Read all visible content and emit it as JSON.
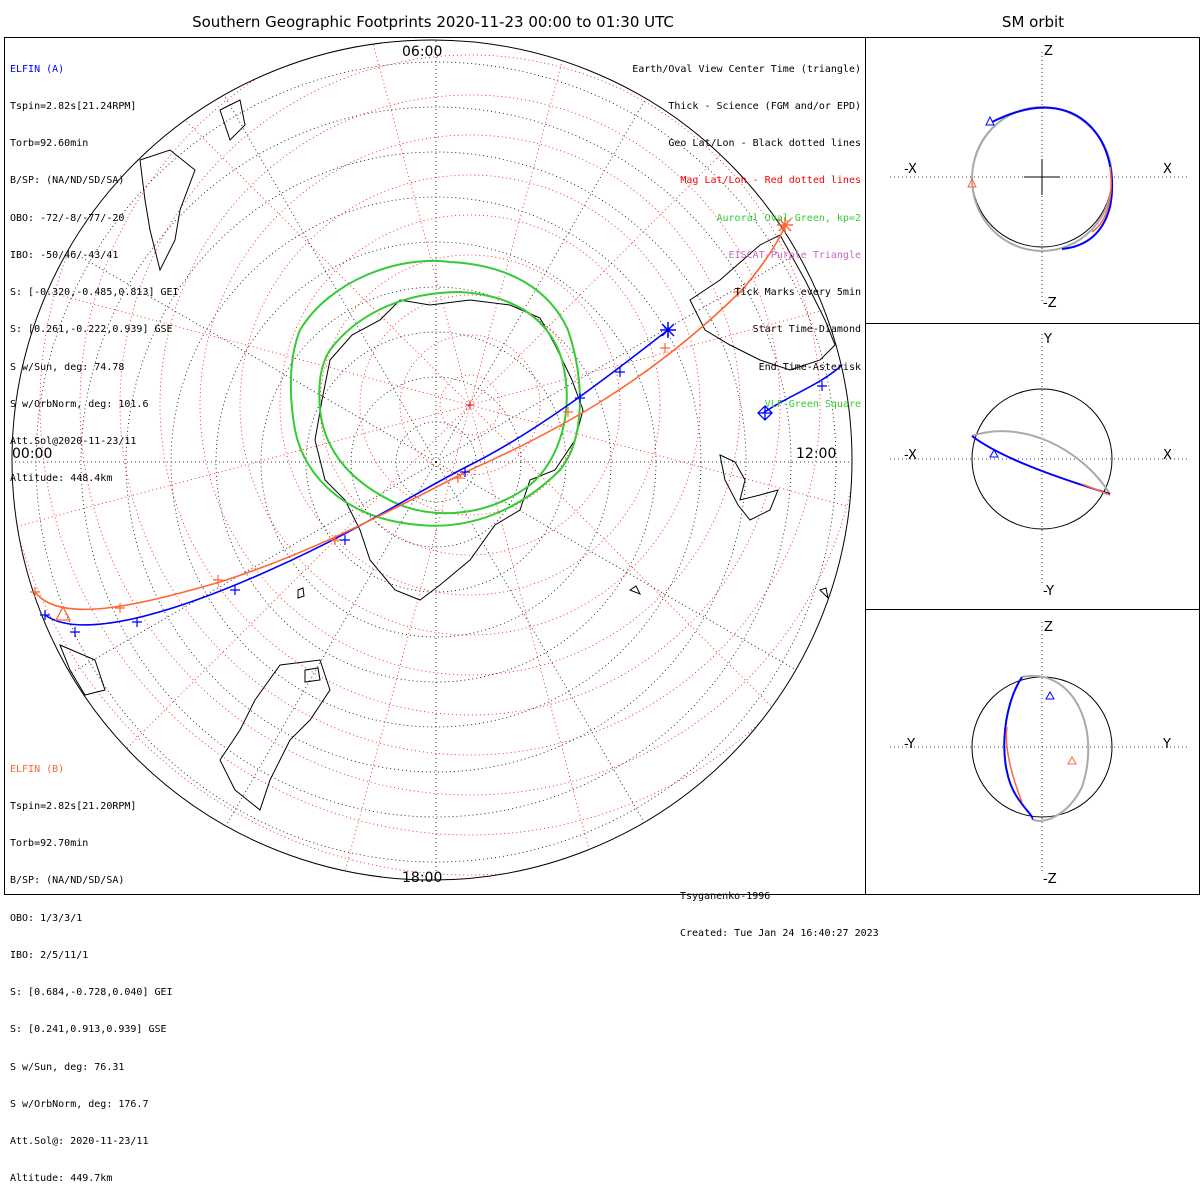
{
  "title": "Southern Geographic Footprints 2020-11-23 00:00 to 01:30 UTC",
  "sm_title": "SM orbit",
  "hour_labels": {
    "top": "06:00",
    "left": "00:00",
    "right": "12:00",
    "bottom": "18:00"
  },
  "elfin_a": {
    "name": "ELFIN (A)",
    "color": "#0000ff",
    "lines": [
      "Tspin=2.82s[21.24RPM]",
      "Torb=92.60min",
      "B/SP: (NA/ND/SD/SA)",
      "OBO: -72/-8/-77/-20",
      "IBO: -50/46/-43/41",
      "S: [-0.320,-0.485,0.813] GEI",
      "S: [0.261,-0.222,0.939] GSE",
      "S w/Sun, deg: 74.78",
      "S w/OrbNorm, deg: 101.6",
      "Att.Sol@2020-11-23/11",
      "Altitude: 448.4km"
    ]
  },
  "elfin_b": {
    "name": "ELFIN (B)",
    "color": "#ff6633",
    "lines": [
      "Tspin=2.82s[21.20RPM]",
      "Torb=92.70min",
      "B/SP: (NA/ND/SD/SA)",
      "OBO: 1/3/3/1",
      "IBO: 2/5/11/1",
      "S: [0.684,-0.728,0.040] GEI",
      "S: [0.241,0.913,0.939] GSE",
      "S w/Sun, deg: 76.31",
      "S w/OrbNorm, deg: 176.7",
      "Att.Sol@: 2020-11-23/11",
      "Altitude: 449.7km"
    ]
  },
  "legend": [
    {
      "text": "Earth/Oval View Center Time (triangle)",
      "color": "#000000"
    },
    {
      "text": "Thick - Science (FGM and/or EPD)",
      "color": "#000000"
    },
    {
      "text": "Geo Lat/Lon - Black dotted lines",
      "color": "#000000"
    },
    {
      "text": "Mag Lat/Lon - Red dotted lines",
      "color": "#ff0000"
    },
    {
      "text": "Auroral Oval-Green, kp=2",
      "color": "#33cc33"
    },
    {
      "text": "EISCAT-Purple Triangle",
      "color": "#cc66cc"
    },
    {
      "text": "Tick Marks every 5min",
      "color": "#000000"
    },
    {
      "text": "Start Time-Diamond",
      "color": "#000000"
    },
    {
      "text": "End Time-Asterisk",
      "color": "#000000"
    },
    {
      "text": "VLF-Green Square",
      "color": "#33cc33"
    }
  ],
  "credits": [
    "Tsyganenko-1996",
    "Created: Tue Jan 24 16:40:27 2023"
  ],
  "sm_panels": [
    {
      "axes": [
        "Z",
        "-Z",
        "-X",
        "X"
      ]
    },
    {
      "axes": [
        "Y",
        "-Y",
        "-X",
        "X"
      ]
    },
    {
      "axes": [
        "Z",
        "-Z",
        "-Y",
        "Y"
      ]
    }
  ],
  "colors": {
    "elfin_a": "#0000ff",
    "elfin_b": "#ff6633",
    "oval": "#33cc33",
    "mag_grid": "#ff0000",
    "geo_grid": "#000000",
    "orbit_gray": "#aaaaaa"
  }
}
